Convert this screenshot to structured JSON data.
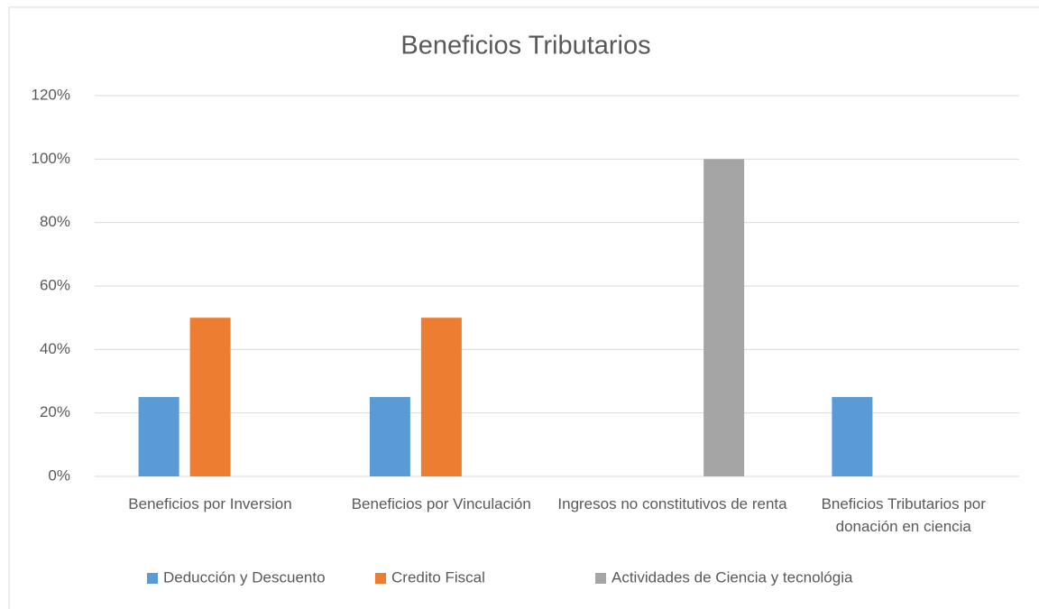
{
  "chart_data": {
    "type": "bar",
    "title": "Beneficios Tributarios",
    "categories": [
      "Beneficios por Inversion",
      "Beneficios por Vinculación",
      "Ingresos no constitutivos de renta",
      "Bneficios Tributarios por donación en ciencia"
    ],
    "series": [
      {
        "name": "Deducción y Descuento",
        "color": "#5b9bd5",
        "values": [
          25,
          25,
          null,
          25
        ]
      },
      {
        "name": "Credito Fiscal",
        "color": "#ed7d31",
        "values": [
          50,
          50,
          null,
          null
        ]
      },
      {
        "name": "Actividades de Ciencia y tecnológia",
        "color": "#a5a5a5",
        "values": [
          null,
          null,
          100,
          null
        ]
      }
    ],
    "ylim": [
      0,
      120
    ],
    "yticks": [
      {
        "value": 0,
        "label": "0%"
      },
      {
        "value": 20,
        "label": "20%"
      },
      {
        "value": 40,
        "label": "40%"
      },
      {
        "value": 60,
        "label": "60%"
      },
      {
        "value": 80,
        "label": "80%"
      },
      {
        "value": 100,
        "label": "100%"
      },
      {
        "value": 120,
        "label": "120%"
      }
    ],
    "grid": true,
    "legend": "bottom"
  }
}
